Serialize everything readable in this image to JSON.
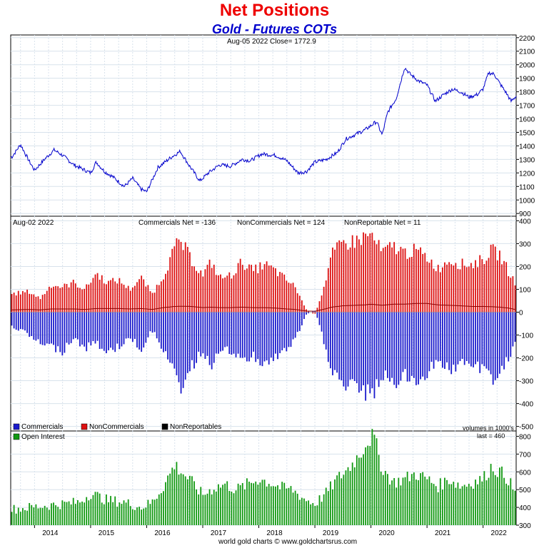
{
  "title": "Net Positions",
  "subtitle": "Gold - Futures COTs",
  "footer": "world gold charts © www.goldchartsrus.com",
  "colors": {
    "price": "#0000cc",
    "commercials": "#1a1acc",
    "noncommercials": "#dd1111",
    "nonreportables": "#000000",
    "open_interest": "#119911",
    "title": "#ee0000",
    "subtitle": "#0000cc"
  },
  "chart_data": [
    {
      "type": "line",
      "name": "price",
      "header": "Aug-05  2022   Close= 1772.9",
      "last_close": 1772.9,
      "ylim": [
        880,
        2220
      ],
      "yticks": [
        900,
        1000,
        1100,
        1200,
        1300,
        1400,
        1500,
        1600,
        1700,
        1800,
        1900,
        2000,
        2100,
        2200
      ],
      "x": [
        2013.6,
        2013.75,
        2013.9,
        2014.0,
        2014.2,
        2014.35,
        2014.5,
        2014.7,
        2014.85,
        2015.0,
        2015.1,
        2015.25,
        2015.4,
        2015.6,
        2015.75,
        2015.9,
        2016.0,
        2016.2,
        2016.45,
        2016.6,
        2016.75,
        2016.95,
        2017.1,
        2017.3,
        2017.5,
        2017.7,
        2017.85,
        2018.05,
        2018.3,
        2018.5,
        2018.7,
        2018.85,
        2019.0,
        2019.2,
        2019.4,
        2019.55,
        2019.75,
        2019.9,
        2020.1,
        2020.2,
        2020.3,
        2020.45,
        2020.6,
        2020.7,
        2020.85,
        2021.0,
        2021.15,
        2021.3,
        2021.45,
        2021.6,
        2021.75,
        2021.9,
        2022.0,
        2022.1,
        2022.2,
        2022.3,
        2022.4,
        2022.5,
        2022.6
      ],
      "y": [
        1320,
        1410,
        1290,
        1220,
        1310,
        1370,
        1330,
        1260,
        1230,
        1200,
        1280,
        1210,
        1170,
        1100,
        1160,
        1080,
        1060,
        1240,
        1320,
        1360,
        1260,
        1140,
        1200,
        1260,
        1250,
        1300,
        1290,
        1340,
        1330,
        1290,
        1200,
        1210,
        1280,
        1300,
        1350,
        1450,
        1490,
        1520,
        1580,
        1480,
        1650,
        1750,
        1980,
        1930,
        1880,
        1850,
        1730,
        1780,
        1820,
        1800,
        1760,
        1780,
        1820,
        1940,
        1930,
        1860,
        1800,
        1730,
        1772.9
      ]
    },
    {
      "type": "bar",
      "name": "cots",
      "header": "Aug-02  2022",
      "summary": {
        "commercials": "Commercials Net = -136",
        "noncommercials": "NonCommercials Net = 124",
        "nonreportable": "NonReportable Net = 11"
      },
      "ylim": [
        -520,
        420
      ],
      "yticks": [
        -500,
        -400,
        -300,
        -200,
        -100,
        0,
        100,
        200,
        300,
        400
      ],
      "legend": [
        "Commercials",
        "NonCommercials",
        "NonReportables"
      ],
      "x": [
        2013.6,
        2013.9,
        2014.1,
        2014.3,
        2014.5,
        2014.7,
        2014.9,
        2015.1,
        2015.3,
        2015.5,
        2015.7,
        2015.9,
        2016.1,
        2016.3,
        2016.5,
        2016.6,
        2016.8,
        2017.0,
        2017.15,
        2017.3,
        2017.5,
        2017.7,
        2017.9,
        2018.1,
        2018.3,
        2018.5,
        2018.65,
        2018.85,
        2019.0,
        2019.15,
        2019.3,
        2019.5,
        2019.7,
        2019.9,
        2020.0,
        2020.2,
        2020.4,
        2020.6,
        2020.8,
        2021.0,
        2021.2,
        2021.4,
        2021.6,
        2021.8,
        2022.0,
        2022.15,
        2022.3,
        2022.45,
        2022.59
      ],
      "commercials": [
        -60,
        -100,
        -140,
        -150,
        -170,
        -110,
        -160,
        -130,
        -180,
        -150,
        -110,
        -160,
        -80,
        -160,
        -280,
        -330,
        -240,
        -170,
        -230,
        -170,
        -170,
        -220,
        -190,
        -230,
        -200,
        -160,
        -120,
        -10,
        10,
        -120,
        -250,
        -320,
        -330,
        -350,
        -370,
        -280,
        -310,
        -280,
        -310,
        -260,
        -210,
        -250,
        -230,
        -230,
        -250,
        -290,
        -270,
        -200,
        -136
      ],
      "noncommercials": [
        80,
        90,
        60,
        120,
        110,
        130,
        100,
        170,
        130,
        140,
        100,
        150,
        80,
        160,
        280,
        310,
        230,
        160,
        220,
        150,
        160,
        220,
        180,
        210,
        180,
        140,
        110,
        10,
        -10,
        100,
        250,
        300,
        310,
        330,
        340,
        260,
        290,
        260,
        270,
        240,
        190,
        230,
        210,
        210,
        230,
        270,
        250,
        180,
        124
      ],
      "nonreportables": [
        10,
        12,
        10,
        14,
        14,
        14,
        12,
        16,
        16,
        16,
        14,
        16,
        12,
        20,
        25,
        26,
        25,
        20,
        22,
        20,
        20,
        22,
        20,
        20,
        18,
        14,
        12,
        5,
        4,
        12,
        22,
        28,
        30,
        32,
        35,
        30,
        35,
        35,
        38,
        38,
        32,
        30,
        28,
        25,
        25,
        24,
        22,
        18,
        11
      ]
    },
    {
      "type": "bar",
      "name": "open_interest",
      "legend": [
        "Open Interest"
      ],
      "note": "volumes in 1000's",
      "last": "last = 460",
      "ylim": [
        300,
        830
      ],
      "yticks": [
        300,
        400,
        500,
        600,
        700,
        800
      ],
      "xticks": [
        "2014",
        "2015",
        "2016",
        "2017",
        "2018",
        "2019",
        "2020",
        "2021",
        "2022"
      ],
      "x": [
        2013.6,
        2013.9,
        2014.2,
        2014.5,
        2014.8,
        2015.0,
        2015.3,
        2015.6,
        2015.9,
        2016.1,
        2016.3,
        2016.5,
        2016.75,
        2017.0,
        2017.2,
        2017.4,
        2017.6,
        2017.8,
        2018.0,
        2018.2,
        2018.4,
        2018.6,
        2018.8,
        2019.0,
        2019.2,
        2019.4,
        2019.6,
        2019.8,
        2019.95,
        2020.05,
        2020.2,
        2020.4,
        2020.6,
        2020.8,
        2021.0,
        2021.2,
        2021.4,
        2021.6,
        2021.8,
        2022.0,
        2022.15,
        2022.3,
        2022.45,
        2022.59
      ],
      "y": [
        390,
        400,
        410,
        420,
        430,
        480,
        440,
        430,
        400,
        430,
        520,
        640,
        560,
        470,
        510,
        530,
        500,
        530,
        560,
        540,
        510,
        500,
        450,
        420,
        480,
        560,
        620,
        700,
        780,
        800,
        620,
        540,
        560,
        590,
        560,
        520,
        560,
        520,
        540,
        560,
        630,
        600,
        560,
        460
      ]
    }
  ]
}
